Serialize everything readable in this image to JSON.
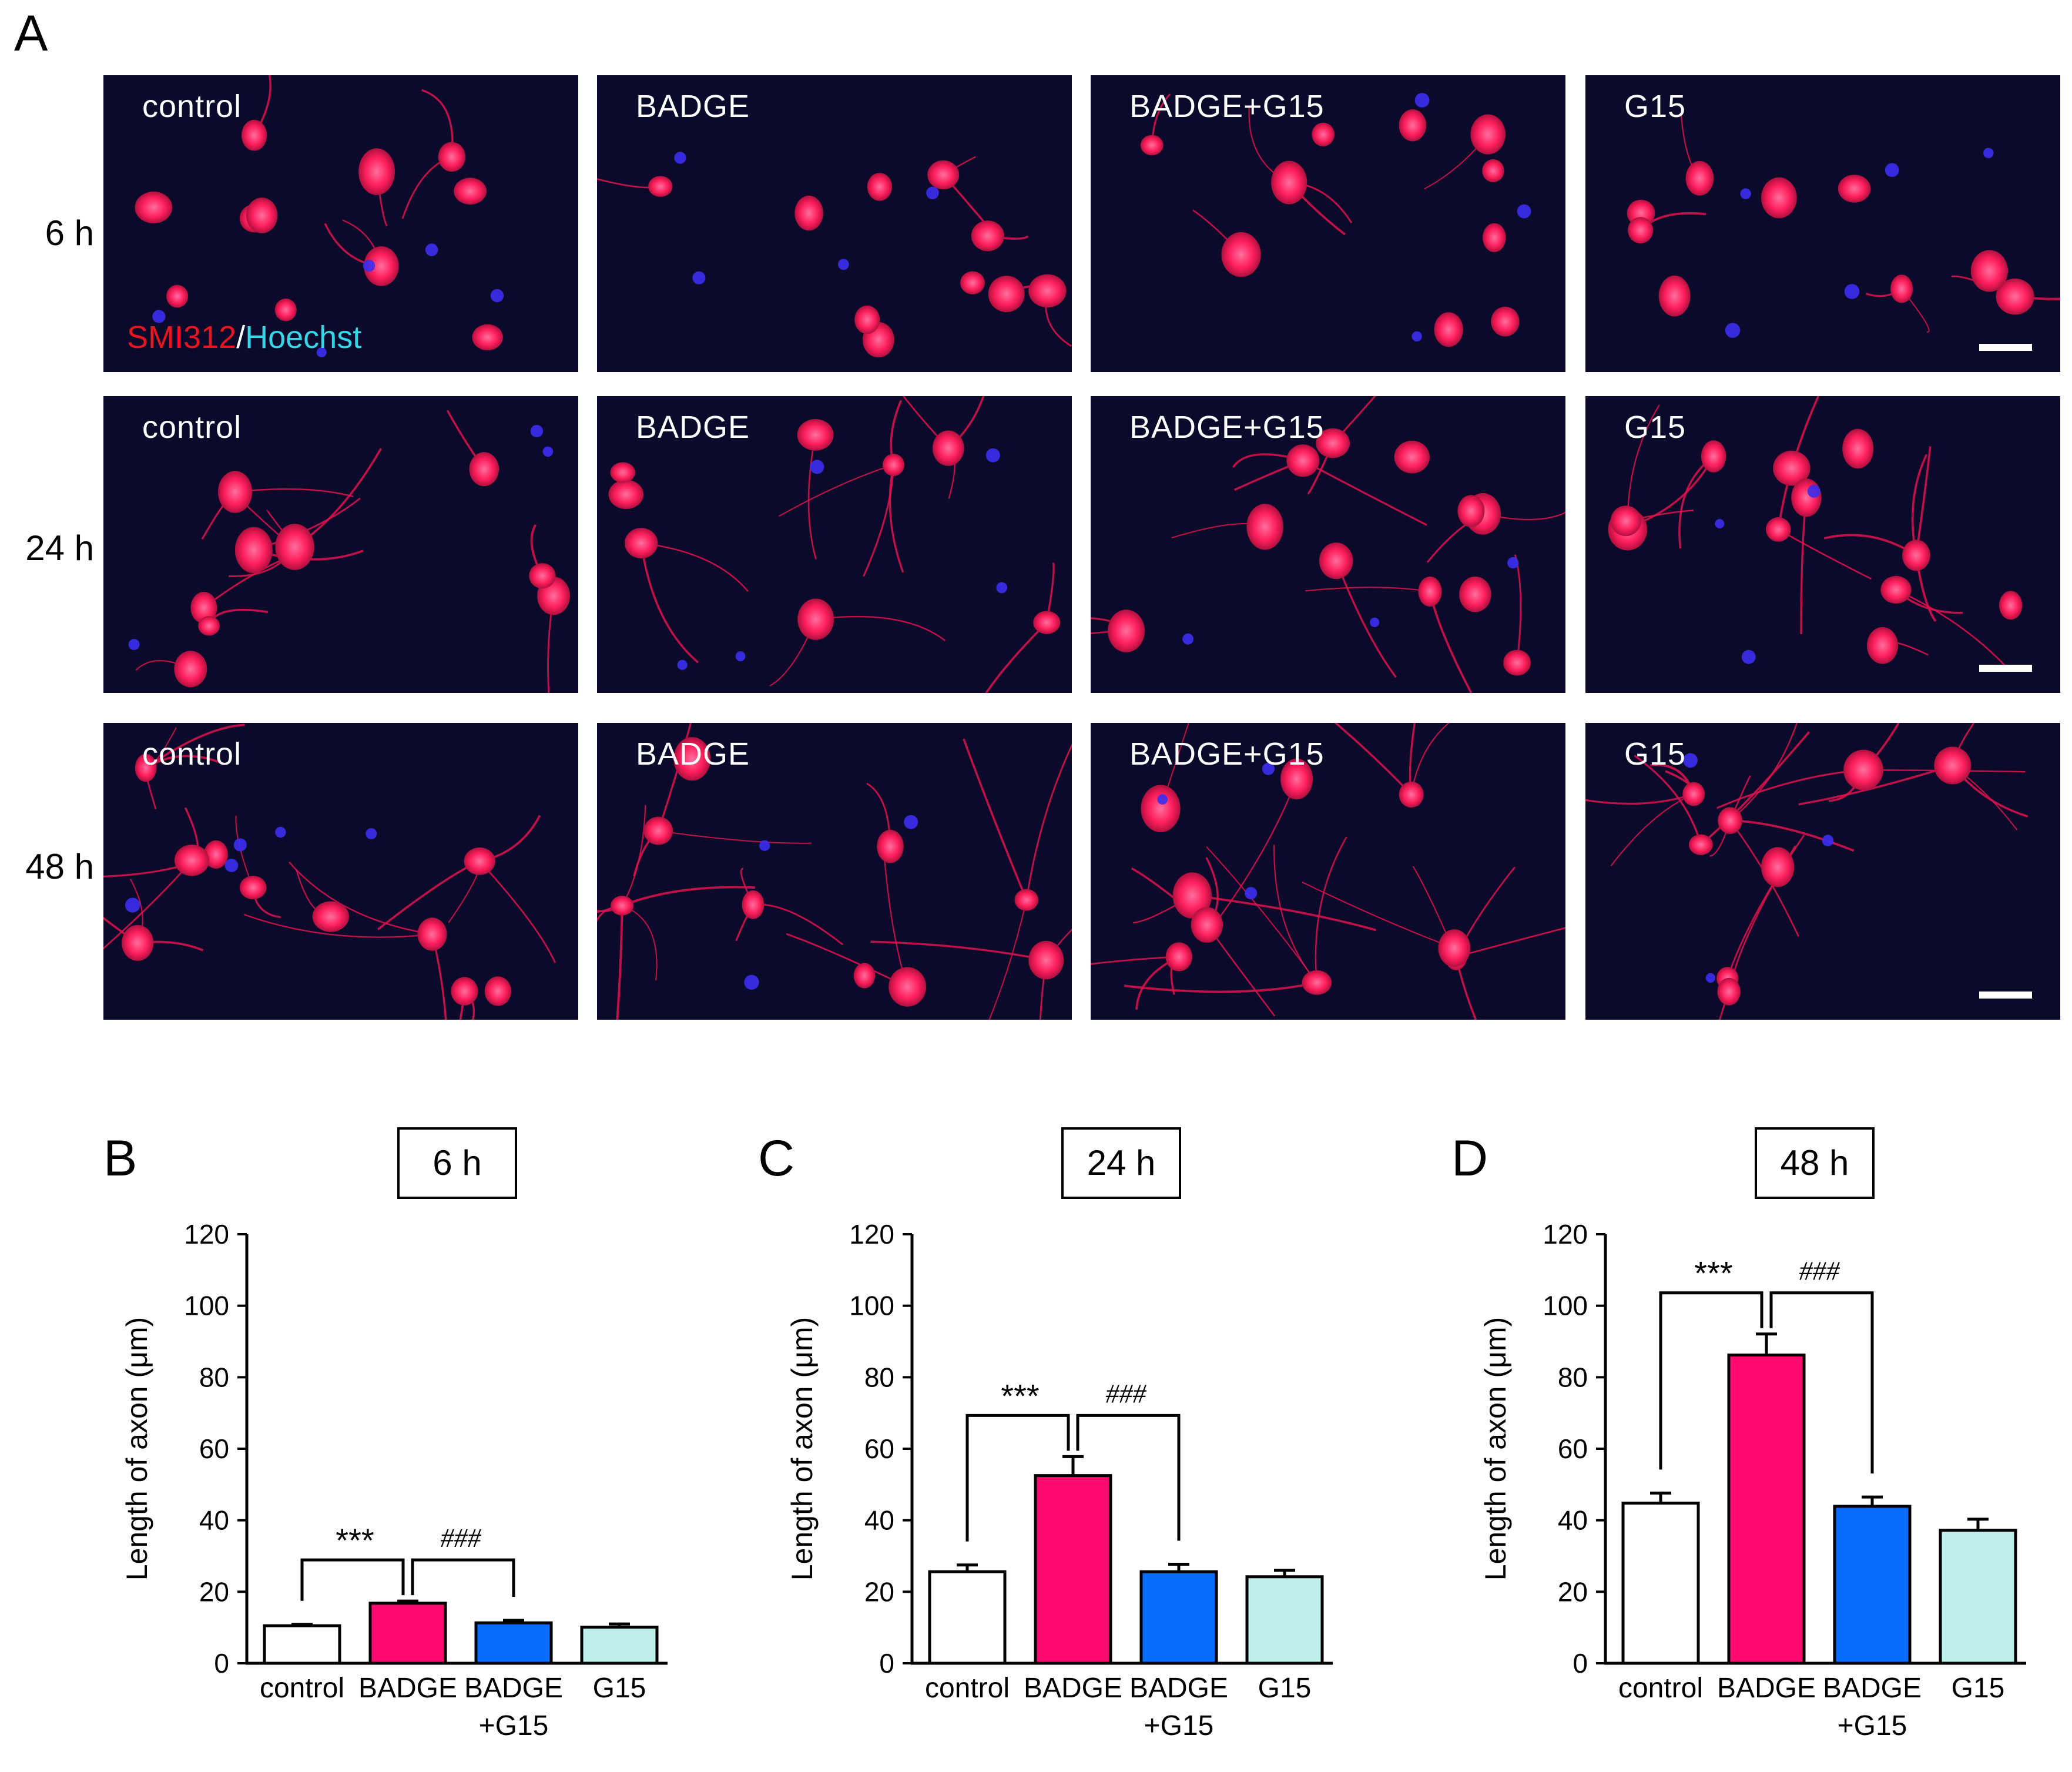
{
  "panel_letters": {
    "A": "A",
    "B": "B",
    "C": "C",
    "D": "D"
  },
  "row_labels": [
    "6 h",
    "24 h",
    "48 h"
  ],
  "treatments": [
    "control",
    "BADGE",
    "BADGE+G15",
    "G15"
  ],
  "stain_legend": {
    "red": "SMI312",
    "slash": "/",
    "blue": "Hoechst"
  },
  "colors": {
    "control": "#ffffff",
    "BADGE": "#ff0b6e",
    "BADGE+G15": "#0a6cff",
    "G15": "#bdeee9",
    "micrograph_background": "#0b0a2a",
    "neuron_red": "#ff1f5c",
    "nucleus_blue": "#3a2df0"
  },
  "chart_data": [
    {
      "panel": "B",
      "type": "bar",
      "title": "6 h",
      "ylabel": "Length of axon (μm)",
      "ylim": [
        0,
        120
      ],
      "yticks": [
        "0",
        "20",
        "40",
        "60",
        "80",
        "100",
        "120"
      ],
      "categories": [
        [
          "control"
        ],
        [
          "BADGE"
        ],
        [
          "BADGE",
          "+G15"
        ],
        [
          "G15"
        ]
      ],
      "values": [
        10.5,
        16.8,
        11.3,
        10.1
      ],
      "errors": [
        0.4,
        0.6,
        0.7,
        0.9
      ],
      "annotations": [
        "***",
        "###"
      ]
    },
    {
      "panel": "C",
      "type": "bar",
      "title": "24 h",
      "ylabel": "Length of axon (μm)",
      "ylim": [
        0,
        120
      ],
      "yticks": [
        "0",
        "20",
        "40",
        "60",
        "80",
        "100",
        "120"
      ],
      "categories": [
        [
          "control"
        ],
        [
          "BADGE"
        ],
        [
          "BADGE",
          "+G15"
        ],
        [
          "G15"
        ]
      ],
      "values": [
        25.6,
        52.5,
        25.6,
        24.2
      ],
      "errors": [
        1.9,
        5.3,
        2.1,
        1.8
      ],
      "annotations": [
        "***",
        "###"
      ]
    },
    {
      "panel": "D",
      "type": "bar",
      "title": "48 h",
      "ylabel": "Length of axon (μm)",
      "ylim": [
        0,
        120
      ],
      "yticks": [
        "0",
        "20",
        "40",
        "60",
        "80",
        "100",
        "120"
      ],
      "categories": [
        [
          "control"
        ],
        [
          "BADGE"
        ],
        [
          "BADGE",
          "+G15"
        ],
        [
          "G15"
        ]
      ],
      "values": [
        44.8,
        86.2,
        43.9,
        37.2
      ],
      "errors": [
        2.8,
        5.9,
        2.6,
        3.1
      ],
      "annotations": [
        "***",
        "###"
      ]
    }
  ]
}
